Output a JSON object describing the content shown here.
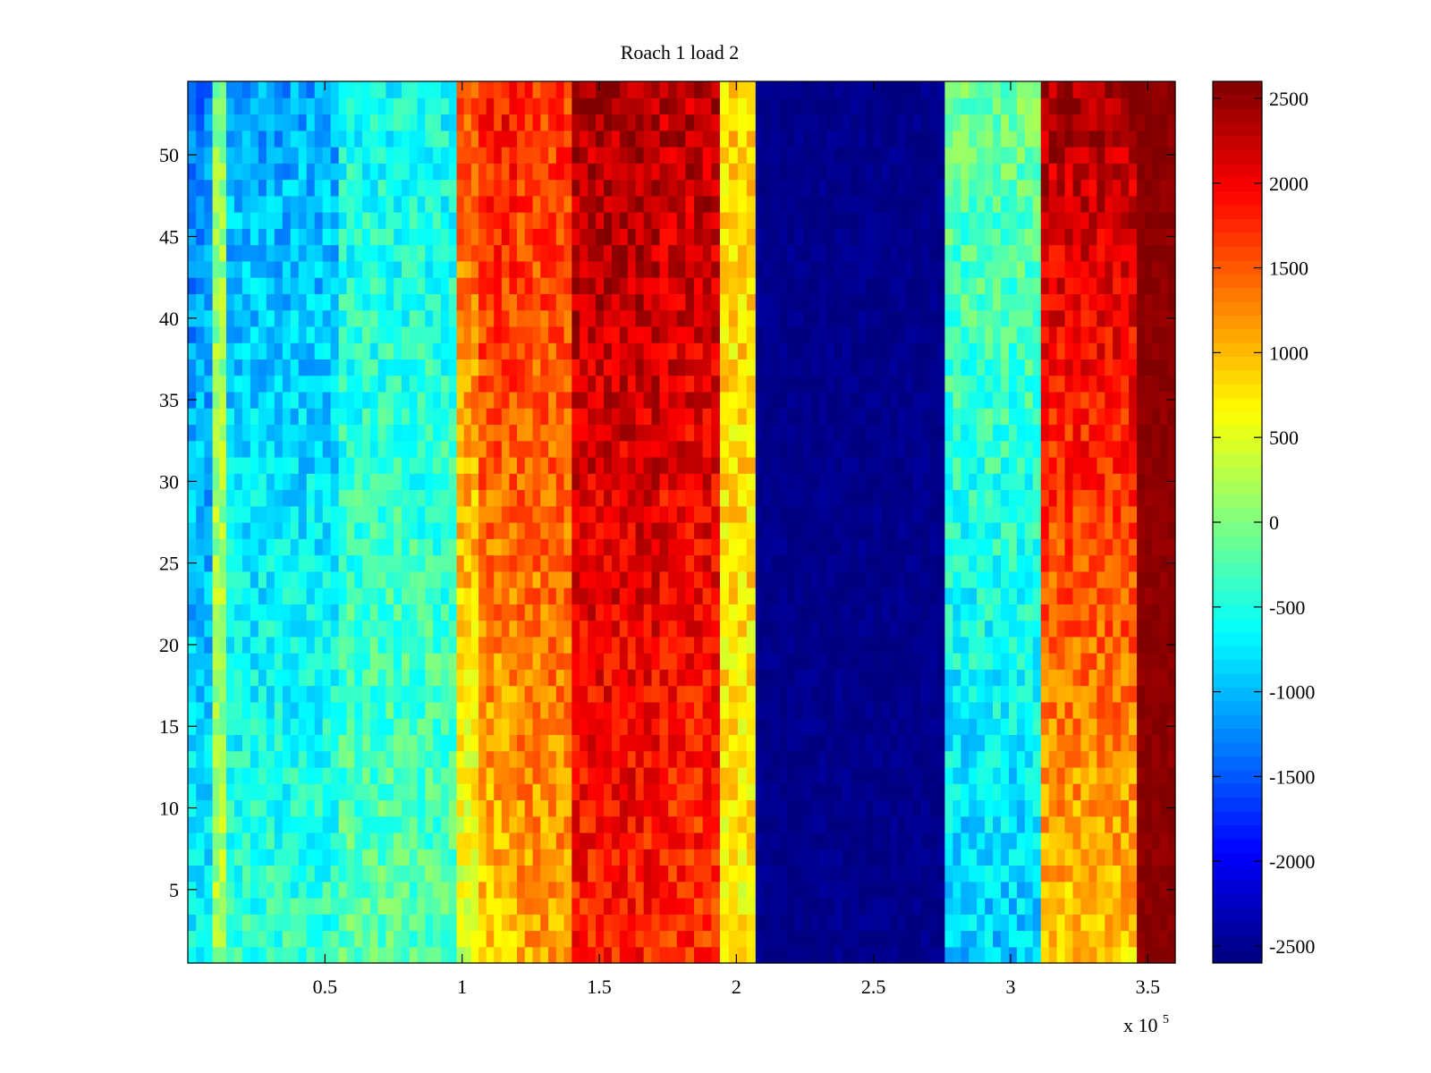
{
  "chart_data": {
    "type": "heatmap",
    "title": "Roach 1 load 2",
    "xlabel": "",
    "ylabel": "",
    "x_multiplier_label": "x 10",
    "x_multiplier_exponent": "5",
    "xlim": [
      0,
      3.6
    ],
    "ylim": [
      0.5,
      54.5
    ],
    "x_ticks": [
      0.5,
      1,
      1.5,
      2,
      2.5,
      3,
      3.5
    ],
    "x_tick_labels": [
      "0.5",
      "1",
      "1.5",
      "2",
      "2.5",
      "3",
      "3.5"
    ],
    "y_ticks": [
      5,
      10,
      15,
      20,
      25,
      30,
      35,
      40,
      45,
      50
    ],
    "y_tick_labels": [
      "5",
      "10",
      "15",
      "20",
      "25",
      "30",
      "35",
      "40",
      "45",
      "50"
    ],
    "rows": 54,
    "colorbar": {
      "colormap": "jet",
      "clim": [
        -2600,
        2600
      ],
      "ticks": [
        2500,
        2000,
        1500,
        1000,
        500,
        0,
        -500,
        -1000,
        -1500,
        -2000,
        -2500
      ],
      "tick_labels": [
        "2500",
        "2000",
        "1500",
        "1000",
        "500",
        "0",
        "-500",
        "-1000",
        "-1500",
        "-2000",
        "-2500"
      ]
    },
    "x_segments": [
      {
        "x_start": 0.0,
        "x_end": 0.09,
        "value_low_rows": -700,
        "value_high_rows": -1300
      },
      {
        "x_start": 0.09,
        "x_end": 0.14,
        "value_low_rows": 200,
        "value_high_rows": 100
      },
      {
        "x_start": 0.14,
        "x_end": 0.55,
        "value_low_rows": -400,
        "value_high_rows": -1100
      },
      {
        "x_start": 0.55,
        "x_end": 0.98,
        "value_low_rows": -200,
        "value_high_rows": -600
      },
      {
        "x_start": 0.98,
        "x_end": 1.06,
        "value_low_rows": 400,
        "value_high_rows": 1600
      },
      {
        "x_start": 1.06,
        "x_end": 1.2,
        "value_low_rows": 900,
        "value_high_rows": 1900
      },
      {
        "x_start": 1.2,
        "x_end": 1.4,
        "value_low_rows": 1100,
        "value_high_rows": 1700
      },
      {
        "x_start": 1.4,
        "x_end": 1.72,
        "value_low_rows": 1800,
        "value_high_rows": 2400
      },
      {
        "x_start": 1.72,
        "x_end": 1.94,
        "value_low_rows": 1700,
        "value_high_rows": 2300
      },
      {
        "x_start": 1.94,
        "x_end": 2.07,
        "value_low_rows": 700,
        "value_high_rows": 900
      },
      {
        "x_start": 2.07,
        "x_end": 2.76,
        "value_low_rows": -2550,
        "value_high_rows": -2550
      },
      {
        "x_start": 2.76,
        "x_end": 3.11,
        "value_low_rows": -900,
        "value_high_rows": -100
      },
      {
        "x_start": 3.11,
        "x_end": 3.46,
        "value_low_rows": 900,
        "value_high_rows": 2400
      },
      {
        "x_start": 3.46,
        "x_end": 3.6,
        "value_low_rows": 2550,
        "value_high_rows": 2550
      }
    ]
  }
}
